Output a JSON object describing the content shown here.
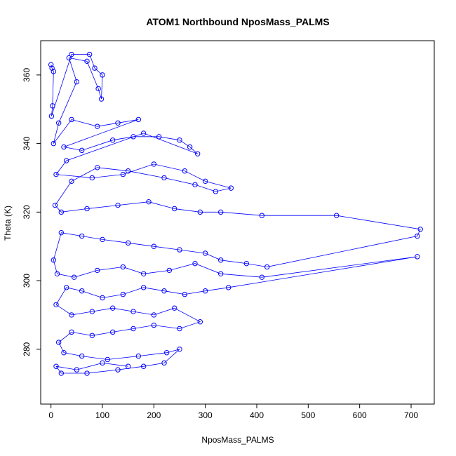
{
  "chart_data": {
    "type": "scatter",
    "title": "ATOM1 Northbound NposMass_PALMS",
    "xlabel": "NposMass_PALMS",
    "ylabel": "Theta (K)",
    "xlim": [
      -20,
      745
    ],
    "ylim": [
      264,
      370
    ],
    "xticks": [
      0,
      100,
      200,
      300,
      400,
      500,
      600,
      700
    ],
    "yticks": [
      280,
      300,
      320,
      340,
      360
    ],
    "grid": false,
    "legend": "none",
    "marker": "open-circle",
    "connected": true,
    "color": "#0000ff",
    "series": [
      {
        "x": [
          0,
          2,
          5,
          3,
          1,
          40,
          75,
          85,
          100,
          98,
          92,
          70,
          35,
          50,
          15,
          5,
          40,
          90,
          130,
          170,
          25,
          60,
          120,
          160,
          210,
          250,
          270,
          285,
          180,
          30,
          10,
          80,
          140,
          200,
          260,
          300,
          350,
          320,
          280,
          220,
          150,
          90,
          40,
          8,
          20,
          70,
          130,
          190,
          240,
          290,
          330,
          410,
          555,
          718,
          712,
          420,
          380,
          330,
          300,
          250,
          200,
          150,
          100,
          60,
          20,
          5,
          12,
          45,
          90,
          140,
          180,
          230,
          280,
          330,
          410,
          712,
          345,
          300,
          260,
          220,
          180,
          140,
          100,
          60,
          30,
          10,
          40,
          80,
          120,
          160,
          200,
          240,
          290,
          250,
          200,
          160,
          120,
          80,
          40,
          15,
          25,
          60,
          110,
          170,
          225,
          250,
          220,
          180,
          130,
          70,
          20,
          10,
          50,
          100,
          150
        ],
        "y": [
          363,
          362,
          361,
          351,
          348,
          366,
          366,
          362,
          360,
          353,
          356,
          364,
          365,
          358,
          346,
          340,
          347,
          345,
          346,
          347,
          339,
          338,
          341,
          342,
          342,
          341,
          339,
          337,
          343,
          335,
          331,
          330,
          331,
          334,
          332,
          329,
          327,
          326,
          328,
          330,
          332,
          333,
          329,
          322,
          320,
          321,
          322,
          323,
          321,
          320,
          320,
          319,
          319,
          315,
          313,
          304,
          305,
          306,
          308,
          309,
          310,
          311,
          312,
          313,
          314,
          306,
          302,
          301,
          303,
          304,
          302,
          303,
          305,
          302,
          301,
          307,
          298,
          297,
          296,
          297,
          298,
          296,
          295,
          297,
          298,
          293,
          290,
          291,
          292,
          291,
          290,
          292,
          288,
          286,
          287,
          286,
          285,
          284,
          285,
          282,
          279,
          278,
          277,
          278,
          279,
          280,
          276,
          275,
          274,
          273,
          273,
          275,
          274,
          276,
          275
        ]
      }
    ]
  }
}
